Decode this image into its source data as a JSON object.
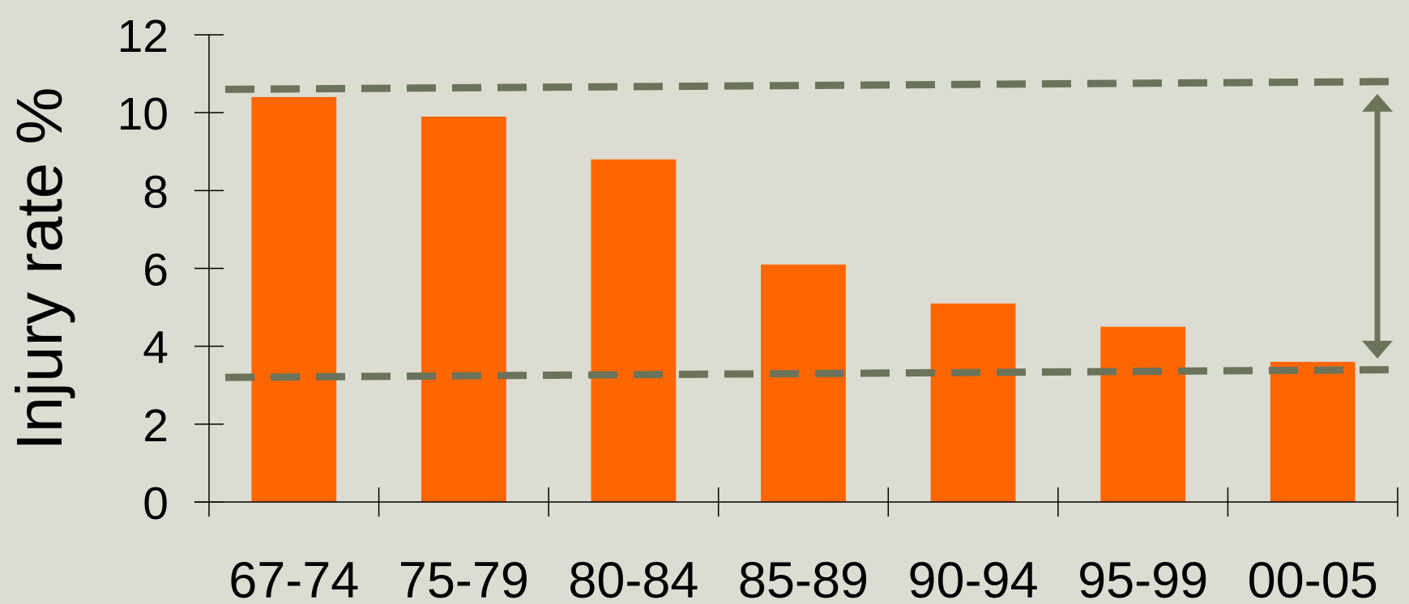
{
  "colors": {
    "background": "#dcdcd2",
    "bar": "#ff6600",
    "axis": "#000000",
    "reference": "#6b735b"
  },
  "chart_data": {
    "type": "bar",
    "title": "",
    "xlabel": "",
    "ylabel": "Injury rate %",
    "categories": [
      "67-74",
      "75-79",
      "80-84",
      "85-89",
      "90-94",
      "95-99",
      "00-05"
    ],
    "values": [
      10.4,
      9.9,
      8.8,
      6.1,
      5.1,
      4.5,
      3.6
    ],
    "ylim": [
      0,
      12
    ],
    "yticks": [
      "0",
      "2",
      "4",
      "6",
      "8",
      "10",
      "12"
    ],
    "grid": false,
    "legend": "none",
    "annotations": [
      {
        "type": "dashed-line",
        "y_start": 10.6,
        "y_end": 10.8
      },
      {
        "type": "dashed-line",
        "y_start": 3.2,
        "y_end": 3.4
      },
      {
        "type": "double-arrow",
        "from": 3.6,
        "to": 10.4
      }
    ]
  }
}
